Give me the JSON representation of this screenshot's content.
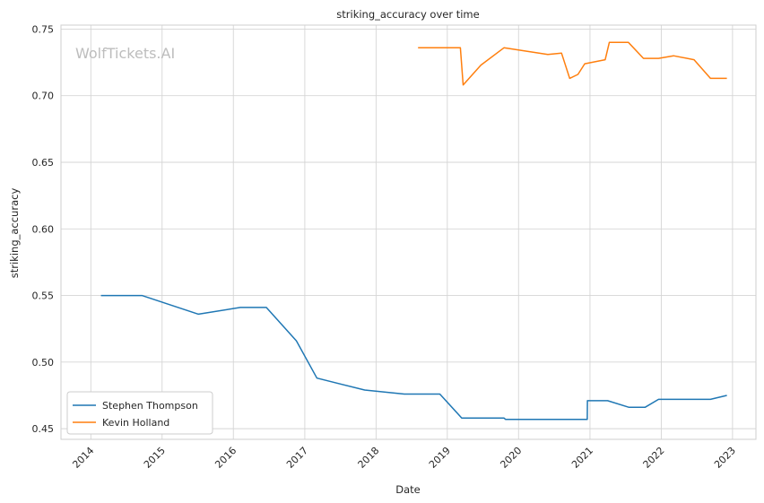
{
  "chart_data": {
    "type": "line",
    "title": "striking_accuracy over time",
    "xlabel": "Date",
    "ylabel": "striking_accuracy",
    "watermark": "WolfTickets.AI",
    "xlim": [
      "2013-08-01",
      "2023-05-01"
    ],
    "ylim": [
      0.442,
      0.753
    ],
    "x_ticks": [
      "2014",
      "2015",
      "2016",
      "2017",
      "2018",
      "2019",
      "2020",
      "2021",
      "2022",
      "2023"
    ],
    "y_ticks": [
      "0.45",
      "0.50",
      "0.55",
      "0.60",
      "0.65",
      "0.70",
      "0.75"
    ],
    "grid": true,
    "legend_position": "lower-left",
    "series": [
      {
        "name": "Stephen Thompson",
        "color": "#1f77b4",
        "points": [
          [
            "2014-02-22",
            0.55
          ],
          [
            "2014-09-20",
            0.55
          ],
          [
            "2015-07-06",
            0.536
          ],
          [
            "2016-02-06",
            0.541
          ],
          [
            "2016-06-18",
            0.541
          ],
          [
            "2016-11-19",
            0.516
          ],
          [
            "2017-03-04",
            0.488
          ],
          [
            "2017-11-04",
            0.479
          ],
          [
            "2018-05-26",
            0.476
          ],
          [
            "2018-11-24",
            0.476
          ],
          [
            "2019-03-16",
            0.458
          ],
          [
            "2019-10-18",
            0.458
          ],
          [
            "2019-10-26",
            0.457
          ],
          [
            "2020-12-18",
            0.457
          ],
          [
            "2020-12-19",
            0.471
          ],
          [
            "2021-04-01",
            0.471
          ],
          [
            "2021-07-20",
            0.466
          ],
          [
            "2021-10-10",
            0.466
          ],
          [
            "2021-12-18",
            0.472
          ],
          [
            "2022-09-10",
            0.472
          ],
          [
            "2022-12-03",
            0.475
          ]
        ]
      },
      {
        "name": "Kevin Holland",
        "color": "#ff7f0e",
        "points": [
          [
            "2018-08-04",
            0.736
          ],
          [
            "2019-03-09",
            0.736
          ],
          [
            "2019-03-23",
            0.708
          ],
          [
            "2019-06-22",
            0.723
          ],
          [
            "2019-10-18",
            0.736
          ],
          [
            "2020-05-30",
            0.731
          ],
          [
            "2020-08-08",
            0.732
          ],
          [
            "2020-09-19",
            0.713
          ],
          [
            "2020-10-31",
            0.716
          ],
          [
            "2020-12-05",
            0.724
          ],
          [
            "2021-03-20",
            0.727
          ],
          [
            "2021-04-10",
            0.74
          ],
          [
            "2021-07-17",
            0.74
          ],
          [
            "2021-10-02",
            0.728
          ],
          [
            "2021-12-18",
            0.728
          ],
          [
            "2022-03-05",
            0.73
          ],
          [
            "2022-06-18",
            0.727
          ],
          [
            "2022-09-10",
            0.713
          ],
          [
            "2022-12-03",
            0.713
          ]
        ]
      }
    ]
  }
}
